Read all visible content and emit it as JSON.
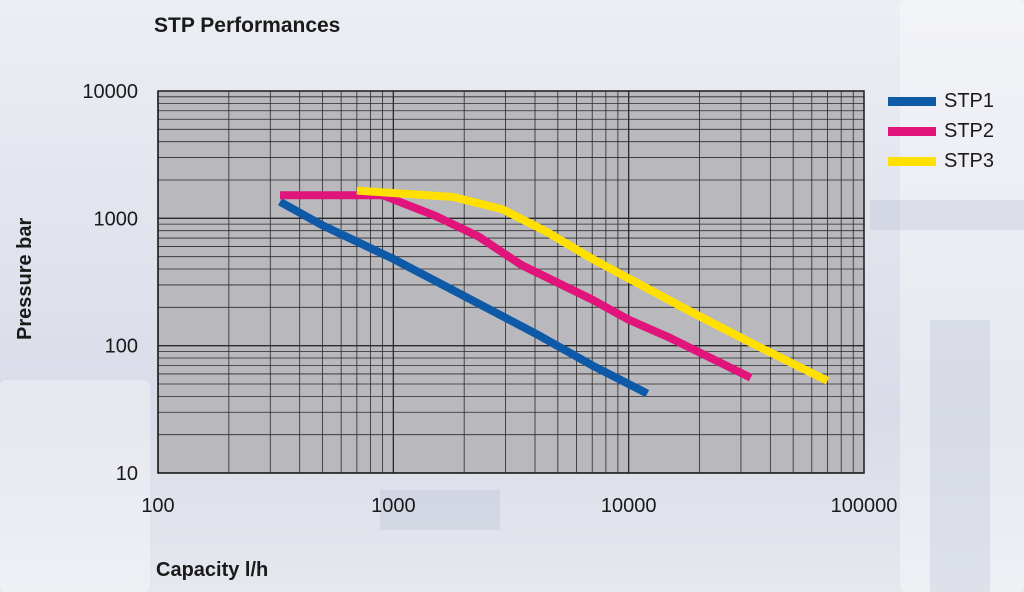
{
  "chart_data": {
    "type": "line",
    "title": "STP Performances",
    "xlabel": "Capacity l/h",
    "ylabel": "Pressure bar",
    "x_scale": "log",
    "y_scale": "log",
    "xlim": [
      100,
      100000
    ],
    "ylim": [
      10,
      10000
    ],
    "x_ticks": [
      100,
      1000,
      10000,
      100000
    ],
    "x_tick_labels": [
      "100",
      "1000",
      "10000",
      "100000"
    ],
    "y_ticks": [
      10,
      100,
      1000,
      10000
    ],
    "y_tick_labels": [
      "10",
      "100",
      "1000",
      "10000"
    ],
    "grid": true,
    "legend_position": "top-right",
    "plot_background": "#b9b9bd",
    "series": [
      {
        "name": "STP1",
        "color": "#0f5aa8",
        "points": [
          [
            330,
            1350
          ],
          [
            500,
            880
          ],
          [
            1000,
            480
          ],
          [
            2000,
            245
          ],
          [
            4000,
            125
          ],
          [
            7000,
            70
          ],
          [
            12000,
            42
          ]
        ]
      },
      {
        "name": "STP2",
        "color": "#e0147a",
        "points": [
          [
            330,
            1520
          ],
          [
            900,
            1520
          ],
          [
            1500,
            1050
          ],
          [
            2300,
            720
          ],
          [
            3500,
            430
          ],
          [
            7000,
            230
          ],
          [
            10000,
            160
          ],
          [
            15000,
            115
          ],
          [
            33000,
            56
          ]
        ]
      },
      {
        "name": "STP3",
        "color": "#ffe000",
        "points": [
          [
            700,
            1650
          ],
          [
            1800,
            1470
          ],
          [
            2900,
            1180
          ],
          [
            4500,
            780
          ],
          [
            7000,
            480
          ],
          [
            13000,
            260
          ],
          [
            20000,
            170
          ],
          [
            35000,
            100
          ],
          [
            70000,
            53
          ]
        ]
      }
    ]
  }
}
